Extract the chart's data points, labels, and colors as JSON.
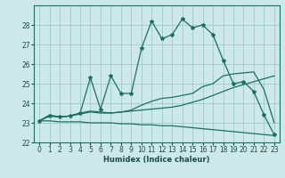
{
  "title": "",
  "xlabel": "Humidex (Indice chaleur)",
  "bg_color": "#cde8e8",
  "grid_color": "#a0c8c8",
  "line_color": "#1a7060",
  "xlim": [
    -0.5,
    23.5
  ],
  "ylim": [
    22,
    29
  ],
  "yticks": [
    22,
    23,
    24,
    25,
    26,
    27,
    28
  ],
  "xticks": [
    0,
    1,
    2,
    3,
    4,
    5,
    6,
    7,
    8,
    9,
    10,
    11,
    12,
    13,
    14,
    15,
    16,
    17,
    18,
    19,
    20,
    21,
    22,
    23
  ],
  "series": [
    [
      23.1,
      23.4,
      23.3,
      23.35,
      23.5,
      23.6,
      23.55,
      23.5,
      23.55,
      23.6,
      23.65,
      23.7,
      23.75,
      23.8,
      23.9,
      24.05,
      24.2,
      24.4,
      24.6,
      24.8,
      24.95,
      25.1,
      25.25,
      25.4
    ],
    [
      23.1,
      23.35,
      23.3,
      23.35,
      23.45,
      23.55,
      23.5,
      23.5,
      23.55,
      23.65,
      23.9,
      24.1,
      24.25,
      24.3,
      24.4,
      24.5,
      24.85,
      25.0,
      25.4,
      25.5,
      25.55,
      25.6,
      24.7,
      23.0
    ],
    [
      23.1,
      23.35,
      23.3,
      23.35,
      23.5,
      25.3,
      23.7,
      25.4,
      24.5,
      24.5,
      26.8,
      28.2,
      27.3,
      27.5,
      28.3,
      27.85,
      28.0,
      27.5,
      26.2,
      25.0,
      25.1,
      24.6,
      23.4,
      22.4
    ],
    [
      23.1,
      23.1,
      23.05,
      23.05,
      23.05,
      23.0,
      23.0,
      23.0,
      22.95,
      22.95,
      22.9,
      22.9,
      22.85,
      22.85,
      22.8,
      22.75,
      22.7,
      22.65,
      22.6,
      22.55,
      22.5,
      22.45,
      22.4,
      22.35
    ]
  ]
}
